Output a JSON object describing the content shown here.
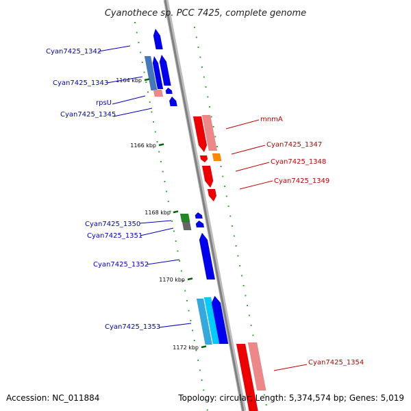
{
  "title": "Cyanothece sp. PCC 7425, complete genome",
  "footer": {
    "accession": "Accession: NC_011884",
    "summary": "Topology: circular; Length: 5,374,574 bp; Genes: 5,019"
  },
  "colors": {
    "forward_label": "#c00000",
    "reverse_label": "#0000c0",
    "tick_mark": "#006600",
    "backbone": "#888888"
  },
  "ticks": [
    {
      "label": "1164 kbp"
    },
    {
      "label": "1166 kbp"
    },
    {
      "label": "1168 kbp"
    },
    {
      "label": "1170 kbp"
    },
    {
      "label": "1172 kbp"
    }
  ],
  "genes": [
    {
      "label": "Cyan7425_1342",
      "strand": "reverse"
    },
    {
      "label": "Cyan7425_1343",
      "strand": "reverse"
    },
    {
      "label": "rpsU",
      "strand": "reverse"
    },
    {
      "label": "Cyan7425_1345",
      "strand": "reverse"
    },
    {
      "label": "mnmA",
      "strand": "forward"
    },
    {
      "label": "Cyan7425_1347",
      "strand": "forward"
    },
    {
      "label": "Cyan7425_1348",
      "strand": "forward"
    },
    {
      "label": "Cyan7425_1349",
      "strand": "forward"
    },
    {
      "label": "Cyan7425_1350",
      "strand": "reverse"
    },
    {
      "label": "Cyan7425_1351",
      "strand": "reverse"
    },
    {
      "label": "Cyan7425_1352",
      "strand": "reverse"
    },
    {
      "label": "Cyan7425_1353",
      "strand": "reverse"
    },
    {
      "label": "Cyan7425_1354",
      "strand": "forward"
    }
  ]
}
